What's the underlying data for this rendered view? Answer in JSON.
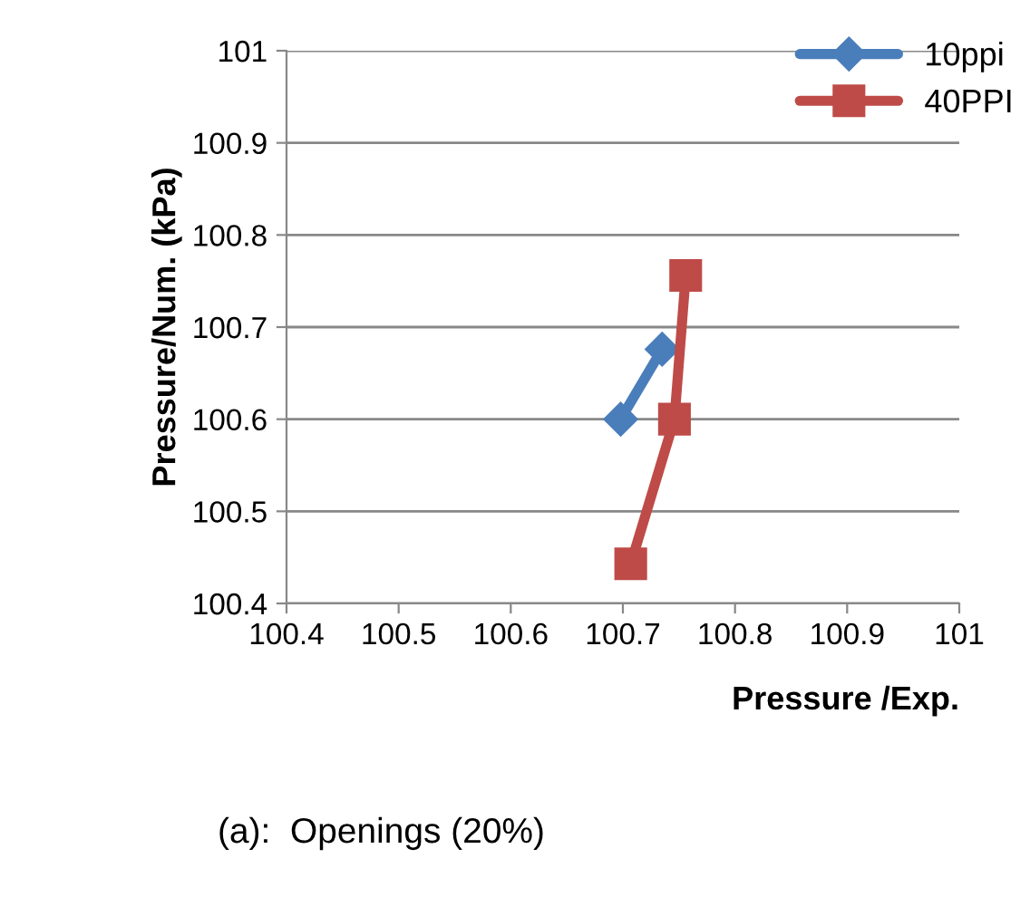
{
  "chart_data": {
    "type": "line",
    "xlabel": "Pressure /Exp.",
    "ylabel": "Pressure/Num. (kPa)",
    "xlim": [
      100.4,
      101
    ],
    "ylim": [
      100.4,
      101
    ],
    "xticks": [
      100.4,
      100.5,
      100.6,
      100.7,
      100.8,
      100.9,
      101
    ],
    "yticks": [
      100.4,
      100.5,
      100.6,
      100.7,
      100.8,
      100.9,
      101
    ],
    "grid": "y",
    "legend": "top right",
    "line_style": "solid",
    "series": [
      {
        "name": "10ppi",
        "color": "#4a7ebb",
        "marker": "diamond",
        "x": [
          100.698,
          100.735
        ],
        "values": [
          100.6,
          100.676
        ]
      },
      {
        "name": "40PPI",
        "color": "#be4b48",
        "marker": "square",
        "x": [
          100.707,
          100.746,
          100.756
        ],
        "values": [
          100.443,
          100.6,
          100.756
        ]
      }
    ],
    "annotations": [
      "(a):  Openings (20%)"
    ]
  }
}
